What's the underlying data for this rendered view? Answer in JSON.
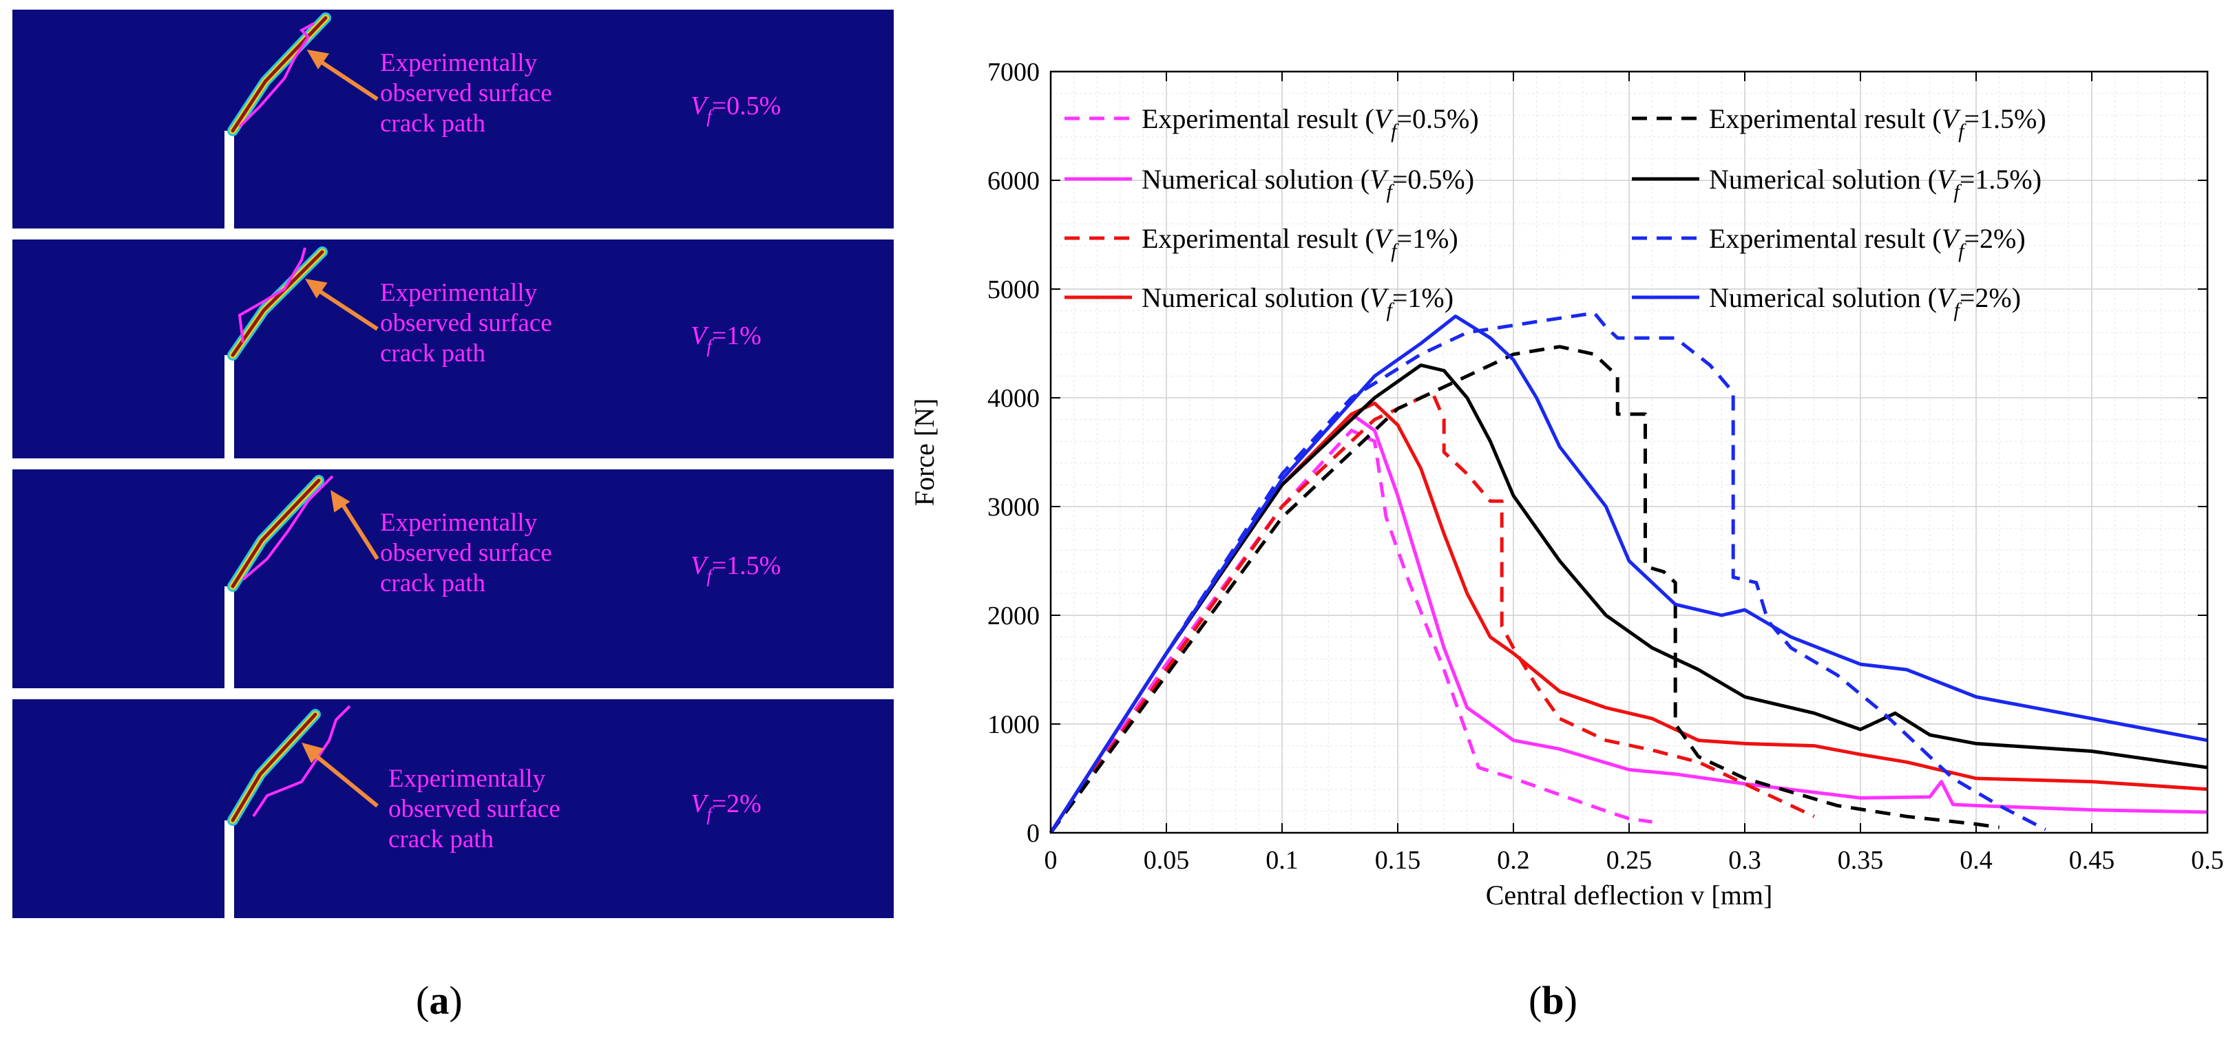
{
  "panel_a": {
    "annotation_lines": [
      "Experimentally",
      "observed  surface",
      "crack path"
    ],
    "panels": [
      {
        "vf_symbol": "V",
        "vf_sub": "f",
        "vf_value": "=0.5%"
      },
      {
        "vf_symbol": "V",
        "vf_sub": "f",
        "vf_value": "=1%"
      },
      {
        "vf_symbol": "V",
        "vf_sub": "f",
        "vf_value": "=1.5%"
      },
      {
        "vf_symbol": "V",
        "vf_sub": "f",
        "vf_value": "=2%"
      }
    ],
    "caption": {
      "open": "(",
      "letter": "a",
      "close": ")"
    },
    "colors": {
      "background": "#0b0b7e",
      "annotation": "#ff2cff",
      "arrow": "#f08a3c",
      "crack_outer": "#27c6e0",
      "crack_inner": "#8b1a1a"
    }
  },
  "panel_b": {
    "caption": {
      "open": "(",
      "letter": "b",
      "close": ")"
    }
  },
  "chart_data": {
    "type": "line",
    "xlabel": "Central deflection v [mm]",
    "ylabel": "Force [N]",
    "xlim": [
      0,
      0.5
    ],
    "ylim": [
      0,
      7000
    ],
    "xticks": [
      "0",
      "0.05",
      "0.1",
      "0.15",
      "0.2",
      "0.25",
      "0.3",
      "0.35",
      "0.4",
      "0.45",
      "0.5"
    ],
    "yticks": [
      "0",
      "1000",
      "2000",
      "3000",
      "4000",
      "5000",
      "6000",
      "7000"
    ],
    "grid": true,
    "legend_position": "top",
    "series": [
      {
        "name": "Experimental result (Vf=0.5%)",
        "legend_prefix": "Experimental result (",
        "legend_sub": "=0.5%)",
        "style": "dashed",
        "color": "#ff33ff",
        "points": [
          [
            0,
            0
          ],
          [
            0.05,
            1550
          ],
          [
            0.1,
            3000
          ],
          [
            0.13,
            3700
          ],
          [
            0.14,
            3600
          ],
          [
            0.145,
            2900
          ],
          [
            0.155,
            2300
          ],
          [
            0.17,
            1500
          ],
          [
            0.18,
            900
          ],
          [
            0.185,
            600
          ],
          [
            0.2,
            500
          ],
          [
            0.22,
            350
          ],
          [
            0.24,
            200
          ],
          [
            0.25,
            130
          ],
          [
            0.26,
            100
          ]
        ]
      },
      {
        "name": "Numerical solution (Vf=0.5%)",
        "legend_prefix": "Numerical solution (",
        "legend_sub": "=0.5%)",
        "style": "solid",
        "color": "#ff33ff",
        "points": [
          [
            0,
            0
          ],
          [
            0.05,
            1650
          ],
          [
            0.1,
            3200
          ],
          [
            0.13,
            3850
          ],
          [
            0.14,
            3700
          ],
          [
            0.15,
            3100
          ],
          [
            0.16,
            2400
          ],
          [
            0.17,
            1700
          ],
          [
            0.18,
            1150
          ],
          [
            0.2,
            850
          ],
          [
            0.22,
            770
          ],
          [
            0.25,
            580
          ],
          [
            0.27,
            540
          ],
          [
            0.3,
            450
          ],
          [
            0.35,
            320
          ],
          [
            0.38,
            330
          ],
          [
            0.385,
            470
          ],
          [
            0.39,
            260
          ],
          [
            0.4,
            250
          ],
          [
            0.45,
            210
          ],
          [
            0.5,
            190
          ]
        ]
      },
      {
        "name": "Experimental result (Vf=1%)",
        "legend_prefix": "Experimental result (",
        "legend_sub": "=1%)",
        "style": "dashed",
        "color": "#ee1111",
        "points": [
          [
            0,
            0
          ],
          [
            0.05,
            1500
          ],
          [
            0.1,
            3000
          ],
          [
            0.14,
            3800
          ],
          [
            0.165,
            4050
          ],
          [
            0.17,
            3800
          ],
          [
            0.17,
            3500
          ],
          [
            0.18,
            3300
          ],
          [
            0.19,
            3050
          ],
          [
            0.195,
            3050
          ],
          [
            0.195,
            1900
          ],
          [
            0.2,
            1700
          ],
          [
            0.21,
            1350
          ],
          [
            0.22,
            1050
          ],
          [
            0.24,
            850
          ],
          [
            0.26,
            760
          ],
          [
            0.28,
            650
          ],
          [
            0.3,
            450
          ],
          [
            0.32,
            250
          ],
          [
            0.33,
            150
          ]
        ]
      },
      {
        "name": "Numerical solution (Vf=1%)",
        "legend_prefix": "Numerical solution (",
        "legend_sub": "=1%)",
        "style": "solid",
        "color": "#ee1111",
        "points": [
          [
            0,
            0
          ],
          [
            0.05,
            1650
          ],
          [
            0.1,
            3200
          ],
          [
            0.13,
            3850
          ],
          [
            0.14,
            3950
          ],
          [
            0.15,
            3750
          ],
          [
            0.16,
            3350
          ],
          [
            0.17,
            2750
          ],
          [
            0.18,
            2200
          ],
          [
            0.19,
            1800
          ],
          [
            0.2,
            1650
          ],
          [
            0.22,
            1300
          ],
          [
            0.24,
            1150
          ],
          [
            0.26,
            1050
          ],
          [
            0.28,
            850
          ],
          [
            0.3,
            820
          ],
          [
            0.33,
            800
          ],
          [
            0.35,
            720
          ],
          [
            0.37,
            650
          ],
          [
            0.4,
            500
          ],
          [
            0.45,
            470
          ],
          [
            0.5,
            400
          ]
        ]
      },
      {
        "name": "Experimental result (Vf=1.5%)",
        "legend_prefix": "Experimental result (",
        "legend_sub": "=1.5%)",
        "style": "dashed",
        "color": "#000000",
        "points": [
          [
            0,
            0
          ],
          [
            0.05,
            1450
          ],
          [
            0.1,
            2900
          ],
          [
            0.15,
            3900
          ],
          [
            0.18,
            4200
          ],
          [
            0.2,
            4400
          ],
          [
            0.22,
            4470
          ],
          [
            0.235,
            4400
          ],
          [
            0.245,
            4200
          ],
          [
            0.245,
            3850
          ],
          [
            0.257,
            3850
          ],
          [
            0.257,
            2450
          ],
          [
            0.265,
            2400
          ],
          [
            0.27,
            2300
          ],
          [
            0.27,
            1000
          ],
          [
            0.28,
            700
          ],
          [
            0.3,
            500
          ],
          [
            0.34,
            250
          ],
          [
            0.37,
            150
          ],
          [
            0.4,
            80
          ],
          [
            0.41,
            50
          ]
        ]
      },
      {
        "name": "Numerical solution (Vf=1.5%)",
        "legend_prefix": "Numerical solution (",
        "legend_sub": "=1.5%)",
        "style": "solid",
        "color": "#000000",
        "points": [
          [
            0,
            0
          ],
          [
            0.05,
            1650
          ],
          [
            0.1,
            3200
          ],
          [
            0.14,
            4000
          ],
          [
            0.16,
            4300
          ],
          [
            0.17,
            4250
          ],
          [
            0.18,
            4000
          ],
          [
            0.19,
            3600
          ],
          [
            0.2,
            3100
          ],
          [
            0.22,
            2500
          ],
          [
            0.24,
            2000
          ],
          [
            0.26,
            1700
          ],
          [
            0.28,
            1500
          ],
          [
            0.3,
            1250
          ],
          [
            0.33,
            1100
          ],
          [
            0.35,
            950
          ],
          [
            0.365,
            1100
          ],
          [
            0.38,
            900
          ],
          [
            0.4,
            820
          ],
          [
            0.45,
            750
          ],
          [
            0.5,
            600
          ]
        ]
      },
      {
        "name": "Experimental result (Vf=2%)",
        "legend_prefix": "Experimental result (",
        "legend_sub": "=2%)",
        "style": "dashed",
        "color": "#1a28ee",
        "points": [
          [
            0,
            0
          ],
          [
            0.05,
            1650
          ],
          [
            0.1,
            3300
          ],
          [
            0.13,
            4000
          ],
          [
            0.16,
            4400
          ],
          [
            0.18,
            4600
          ],
          [
            0.21,
            4700
          ],
          [
            0.235,
            4780
          ],
          [
            0.24,
            4650
          ],
          [
            0.245,
            4550
          ],
          [
            0.27,
            4550
          ],
          [
            0.285,
            4300
          ],
          [
            0.295,
            4050
          ],
          [
            0.295,
            2350
          ],
          [
            0.305,
            2300
          ],
          [
            0.31,
            1950
          ],
          [
            0.32,
            1700
          ],
          [
            0.34,
            1450
          ],
          [
            0.36,
            1100
          ],
          [
            0.38,
            700
          ],
          [
            0.39,
            500
          ],
          [
            0.41,
            250
          ],
          [
            0.43,
            30
          ]
        ]
      },
      {
        "name": "Numerical solution (Vf=2%)",
        "legend_prefix": "Numerical solution (",
        "legend_sub": "=2%)",
        "style": "solid",
        "color": "#1a28ee",
        "points": [
          [
            0,
            0
          ],
          [
            0.05,
            1650
          ],
          [
            0.1,
            3250
          ],
          [
            0.14,
            4200
          ],
          [
            0.16,
            4500
          ],
          [
            0.175,
            4750
          ],
          [
            0.19,
            4550
          ],
          [
            0.2,
            4350
          ],
          [
            0.21,
            4000
          ],
          [
            0.22,
            3550
          ],
          [
            0.24,
            3000
          ],
          [
            0.25,
            2500
          ],
          [
            0.26,
            2300
          ],
          [
            0.27,
            2100
          ],
          [
            0.29,
            2000
          ],
          [
            0.3,
            2050
          ],
          [
            0.32,
            1800
          ],
          [
            0.35,
            1550
          ],
          [
            0.37,
            1500
          ],
          [
            0.4,
            1250
          ],
          [
            0.45,
            1050
          ],
          [
            0.5,
            850
          ]
        ]
      }
    ]
  }
}
